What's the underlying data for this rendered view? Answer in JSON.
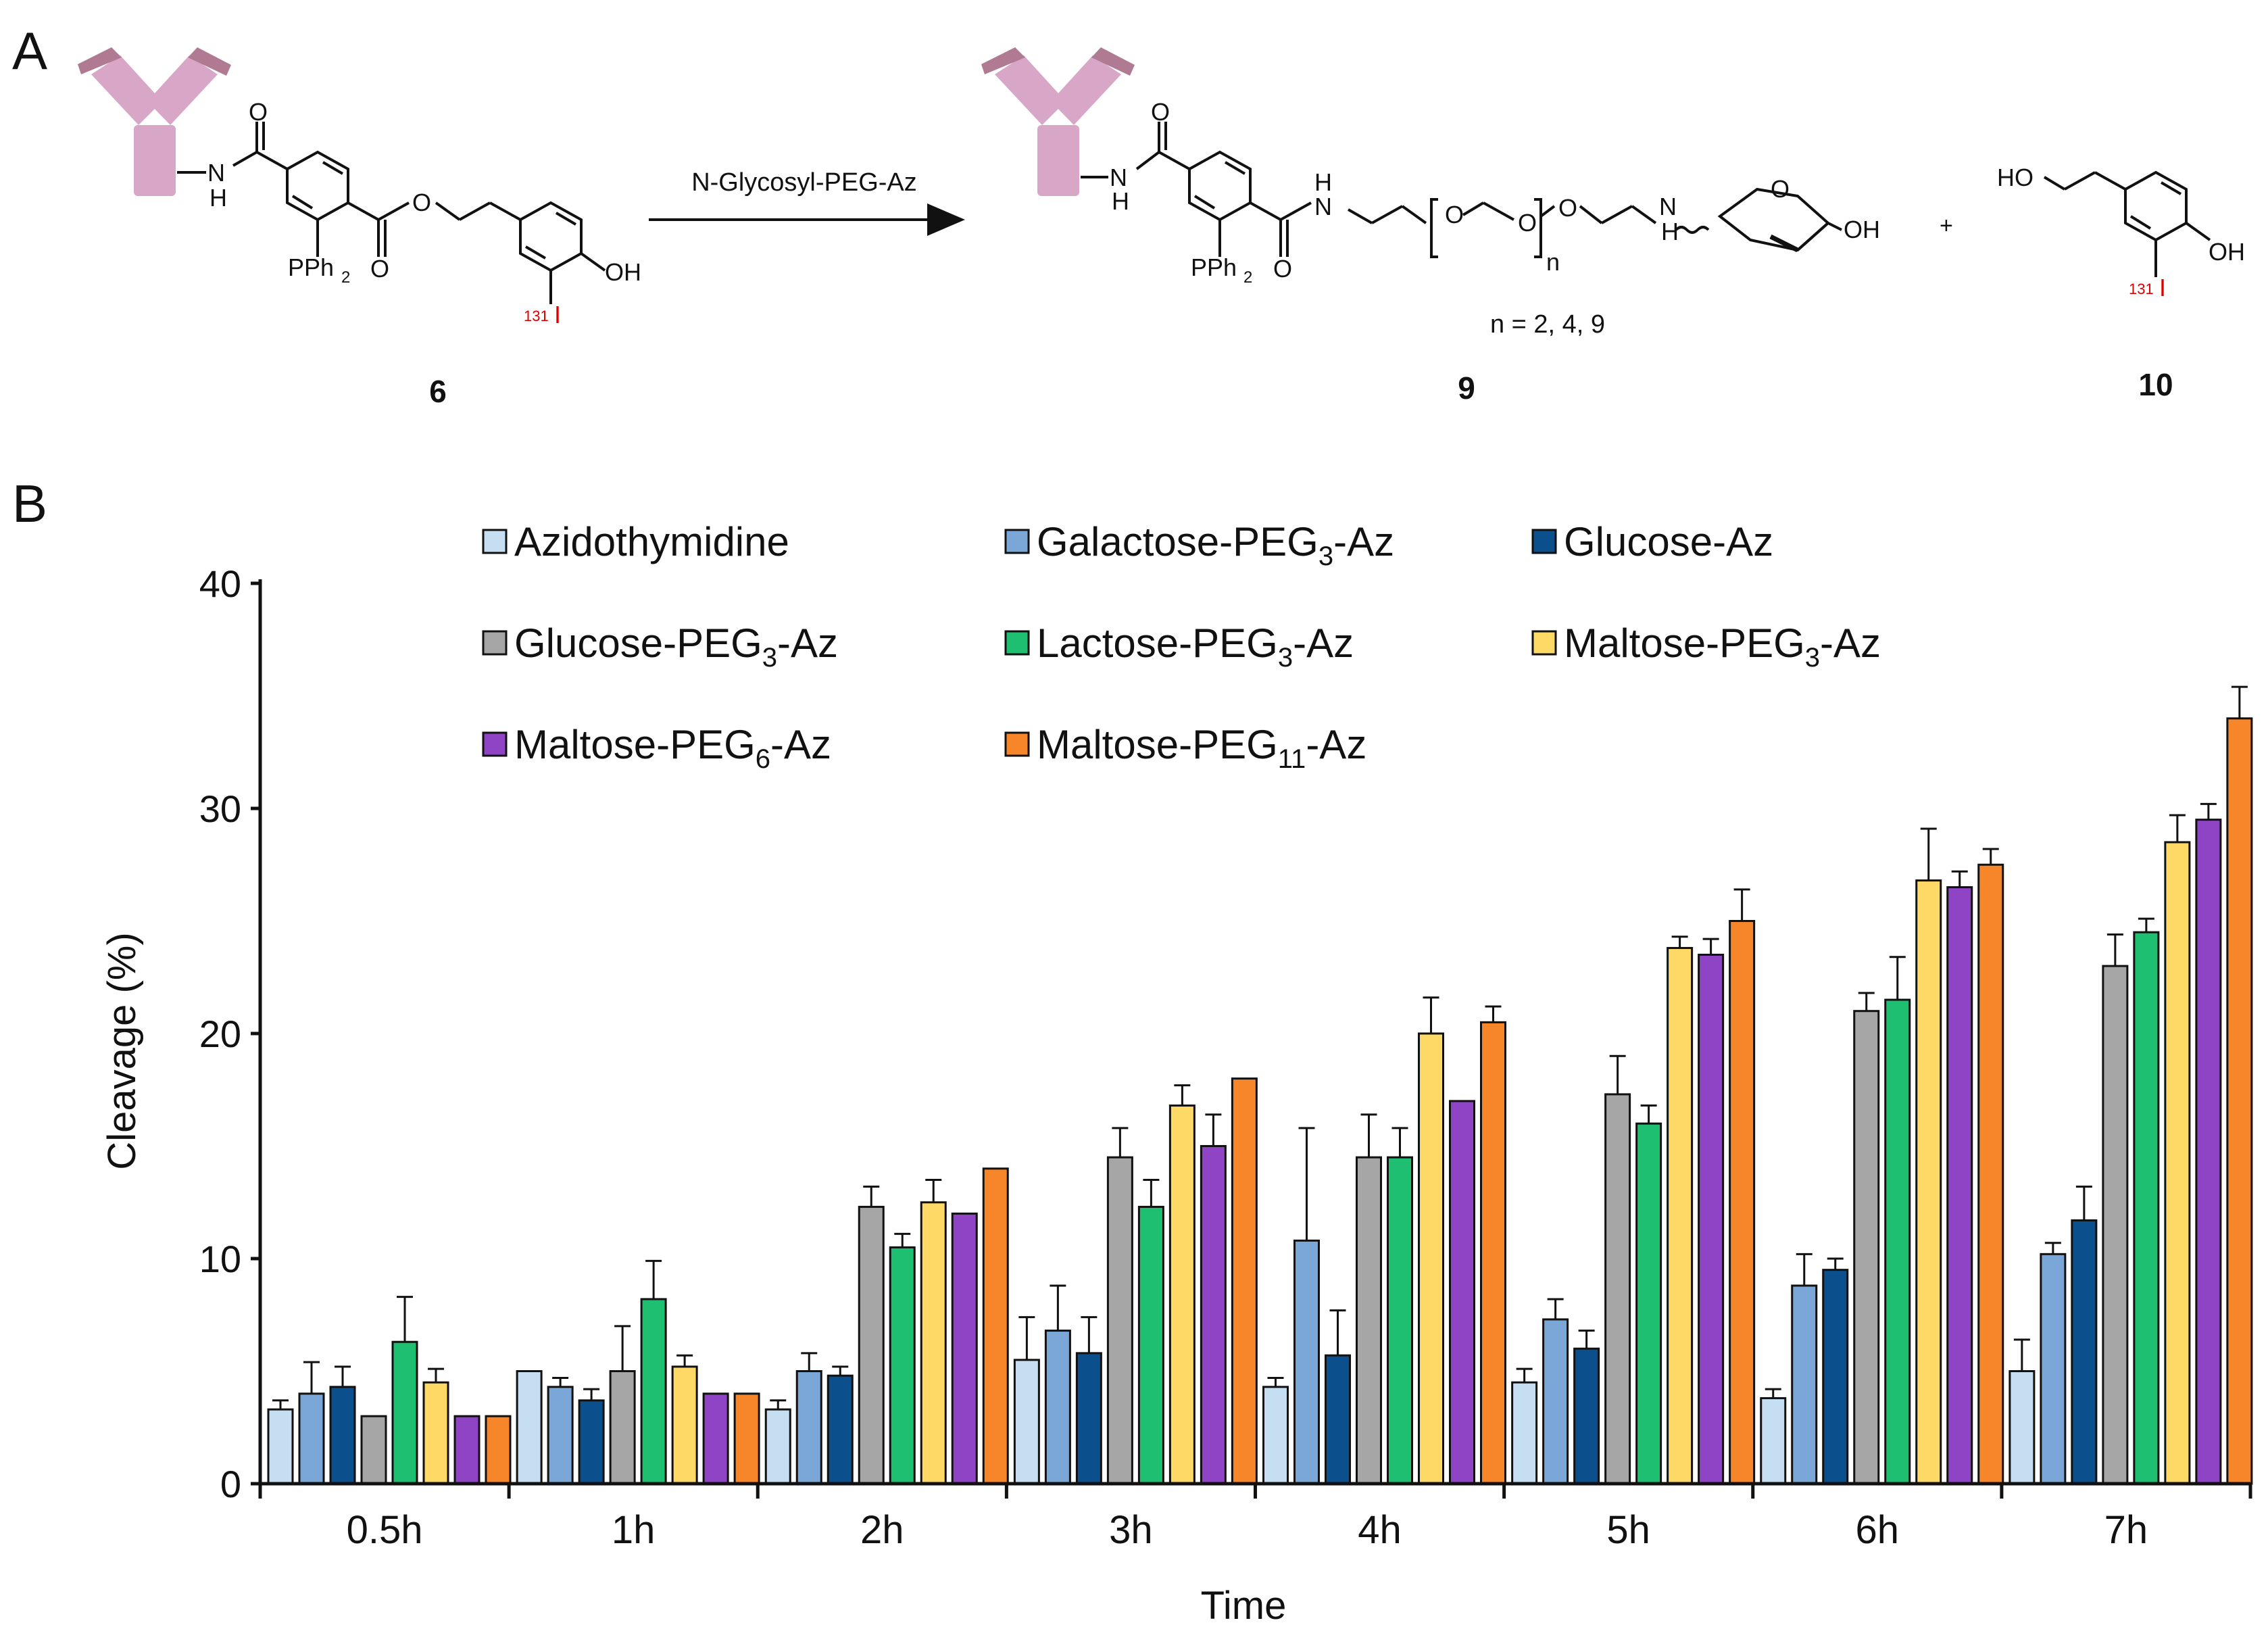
{
  "panel_a": {
    "letter": "A",
    "arrow_label": "N-Glycosyl-PEG-Az",
    "compound_6": "6",
    "compound_9": "9",
    "compound_10": "10",
    "n_values": "n = 2, 4, 9",
    "atom_labels": {
      "o": "O",
      "nh_n": "N",
      "nh_h": "H",
      "pph2": "PPh",
      "pph2_sub": "2",
      "oh": "OH",
      "ho": "HO",
      "iodine": "I",
      "isotope": "131",
      "repeat_n": "n",
      "plus": "+"
    }
  },
  "panel_b": {
    "letter": "B"
  },
  "colors": {
    "Azidothymidine": "#c6def1",
    "Galactose-PEG3-Az": "#7ba7d8",
    "Glucose-Az": "#0b4f8c",
    "Glucose-PEG3-Az": "#a6a6a6",
    "Lactose-PEG3-Az": "#1fbf72",
    "Maltose-PEG3-Az": "#ffd966",
    "Maltose-PEG6-Az": "#8e44c5",
    "Maltose-PEG11-Az": "#f7862a",
    "antibody": "#d8a7c7",
    "antibody_dark": "#b07a93",
    "red_label": "#e00000"
  },
  "chart_data": {
    "type": "bar",
    "xlabel": "Time",
    "ylabel": "Cleavage (%)",
    "ylim": [
      0,
      40
    ],
    "yticks": [
      0,
      10,
      20,
      30,
      40
    ],
    "grid": false,
    "legend_position": "top",
    "categories": [
      "0.5h",
      "1h",
      "2h",
      "3h",
      "4h",
      "5h",
      "6h",
      "7h"
    ],
    "series": [
      {
        "name": "Azidothymidine",
        "label_main": "Azidothymidine",
        "label_sub": "",
        "label_tail": "",
        "values": [
          3.3,
          5.0,
          3.3,
          5.5,
          4.3,
          4.5,
          3.8,
          5.0
        ],
        "errors": [
          0.4,
          0.0,
          0.4,
          1.9,
          0.4,
          0.6,
          0.4,
          1.4
        ]
      },
      {
        "name": "Galactose-PEG3-Az",
        "label_main": "Galactose-PEG",
        "label_sub": "3",
        "label_tail": "-Az",
        "values": [
          4.0,
          4.3,
          5.0,
          6.8,
          10.8,
          7.3,
          8.8,
          10.2
        ],
        "errors": [
          1.4,
          0.4,
          0.8,
          2.0,
          5.0,
          0.9,
          1.4,
          0.5
        ]
      },
      {
        "name": "Glucose-Az",
        "label_main": "Glucose-Az",
        "label_sub": "",
        "label_tail": "",
        "values": [
          4.3,
          3.7,
          4.8,
          5.8,
          5.7,
          6.0,
          9.5,
          11.7
        ],
        "errors": [
          0.9,
          0.5,
          0.4,
          1.6,
          2.0,
          0.8,
          0.5,
          1.5
        ]
      },
      {
        "name": "Glucose-PEG3-Az",
        "label_main": "Glucose-PEG",
        "label_sub": "3",
        "label_tail": "-Az",
        "values": [
          3.0,
          5.0,
          12.3,
          14.5,
          14.5,
          17.3,
          21.0,
          23.0
        ],
        "errors": [
          0.0,
          2.0,
          0.9,
          1.3,
          1.9,
          1.7,
          0.8,
          1.4
        ]
      },
      {
        "name": "Lactose-PEG3-Az",
        "label_main": "Lactose-PEG",
        "label_sub": "3",
        "label_tail": "-Az",
        "values": [
          6.3,
          8.2,
          10.5,
          12.3,
          14.5,
          16.0,
          21.5,
          24.5
        ],
        "errors": [
          2.0,
          1.7,
          0.6,
          1.2,
          1.3,
          0.8,
          1.9,
          0.6
        ]
      },
      {
        "name": "Maltose-PEG3-Az",
        "label_main": "Maltose-PEG",
        "label_sub": "3",
        "label_tail": "-Az",
        "values": [
          4.5,
          5.2,
          12.5,
          16.8,
          20.0,
          23.8,
          26.8,
          28.5
        ],
        "errors": [
          0.6,
          0.5,
          1.0,
          0.9,
          1.6,
          0.5,
          2.3,
          1.2
        ]
      },
      {
        "name": "Maltose-PEG6-Az",
        "label_main": "Maltose-PEG",
        "label_sub": "6",
        "label_tail": "-Az",
        "values": [
          3.0,
          4.0,
          12.0,
          15.0,
          17.0,
          23.5,
          26.5,
          29.5
        ],
        "errors": [
          0.0,
          0.0,
          0.0,
          1.4,
          0.0,
          0.7,
          0.7,
          0.7
        ]
      },
      {
        "name": "Maltose-PEG11-Az",
        "label_main": "Maltose-PEG",
        "label_sub": "11",
        "label_tail": "-Az",
        "values": [
          3.0,
          4.0,
          14.0,
          18.0,
          20.5,
          25.0,
          27.5,
          34.0
        ],
        "errors": [
          0.0,
          0.0,
          0.0,
          0.0,
          0.7,
          1.4,
          0.7,
          1.4
        ]
      }
    ]
  }
}
